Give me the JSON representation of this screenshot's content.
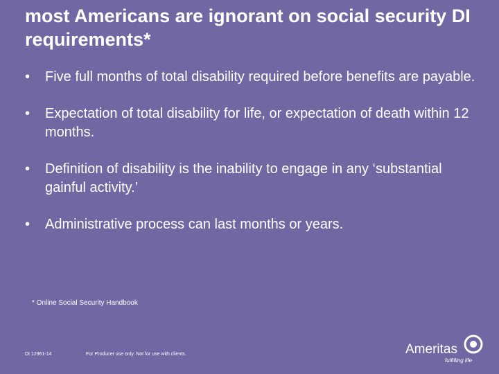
{
  "title": "most Americans are ignorant on social security DI requirements*",
  "bullets": [
    "Five full months of total disability required before benefits are payable.",
    "Expectation of total disability for life, or expectation of death within 12 months.",
    "Definition of disability is the inability to engage in any ‘substantial gainful activity.’",
    "Administrative process can last months or years."
  ],
  "footnote": "* Online Social Security Handbook",
  "footer": {
    "code": "DI 12961-14",
    "disclaimer": "For Producer use only. Not for use with clients.",
    "brand": "Ameritas",
    "tagline": "fulfilling life"
  }
}
